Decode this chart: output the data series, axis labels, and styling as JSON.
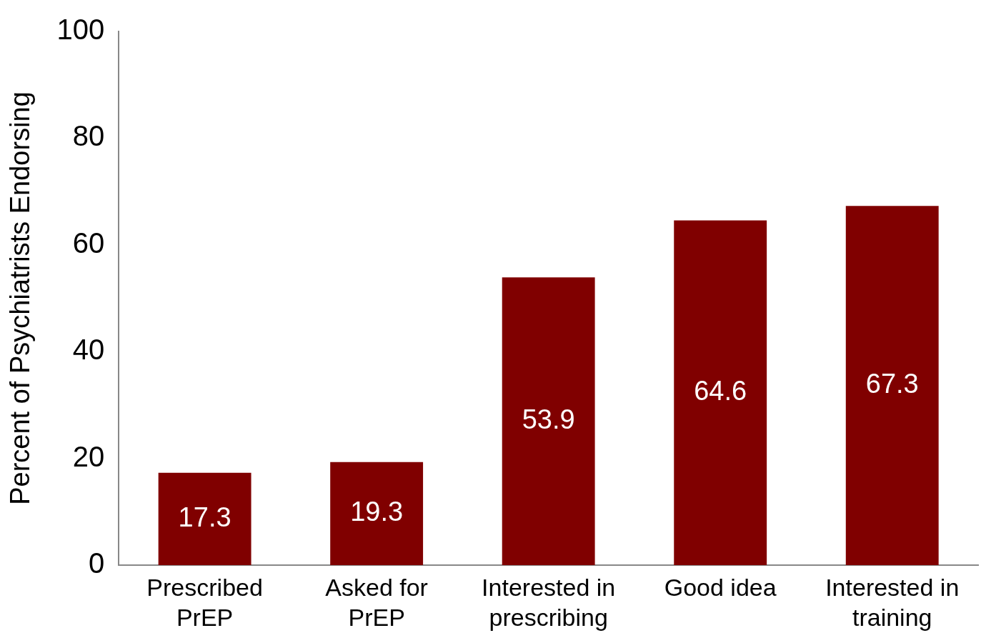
{
  "chart_data": {
    "type": "bar",
    "ylabel": "Percent of Psychiatrists Endorsing",
    "categories": [
      "Prescribed PrEP",
      "Asked for PrEP",
      "Interested in prescribing",
      "Good idea",
      "Interested in training"
    ],
    "values": [
      17.3,
      19.3,
      53.9,
      64.6,
      67.3
    ],
    "color": "#800000",
    "ylim": [
      0,
      100
    ],
    "yticks": [
      0,
      20,
      40,
      60,
      80,
      100
    ],
    "grid": false,
    "legend": false,
    "data_labels": true
  }
}
